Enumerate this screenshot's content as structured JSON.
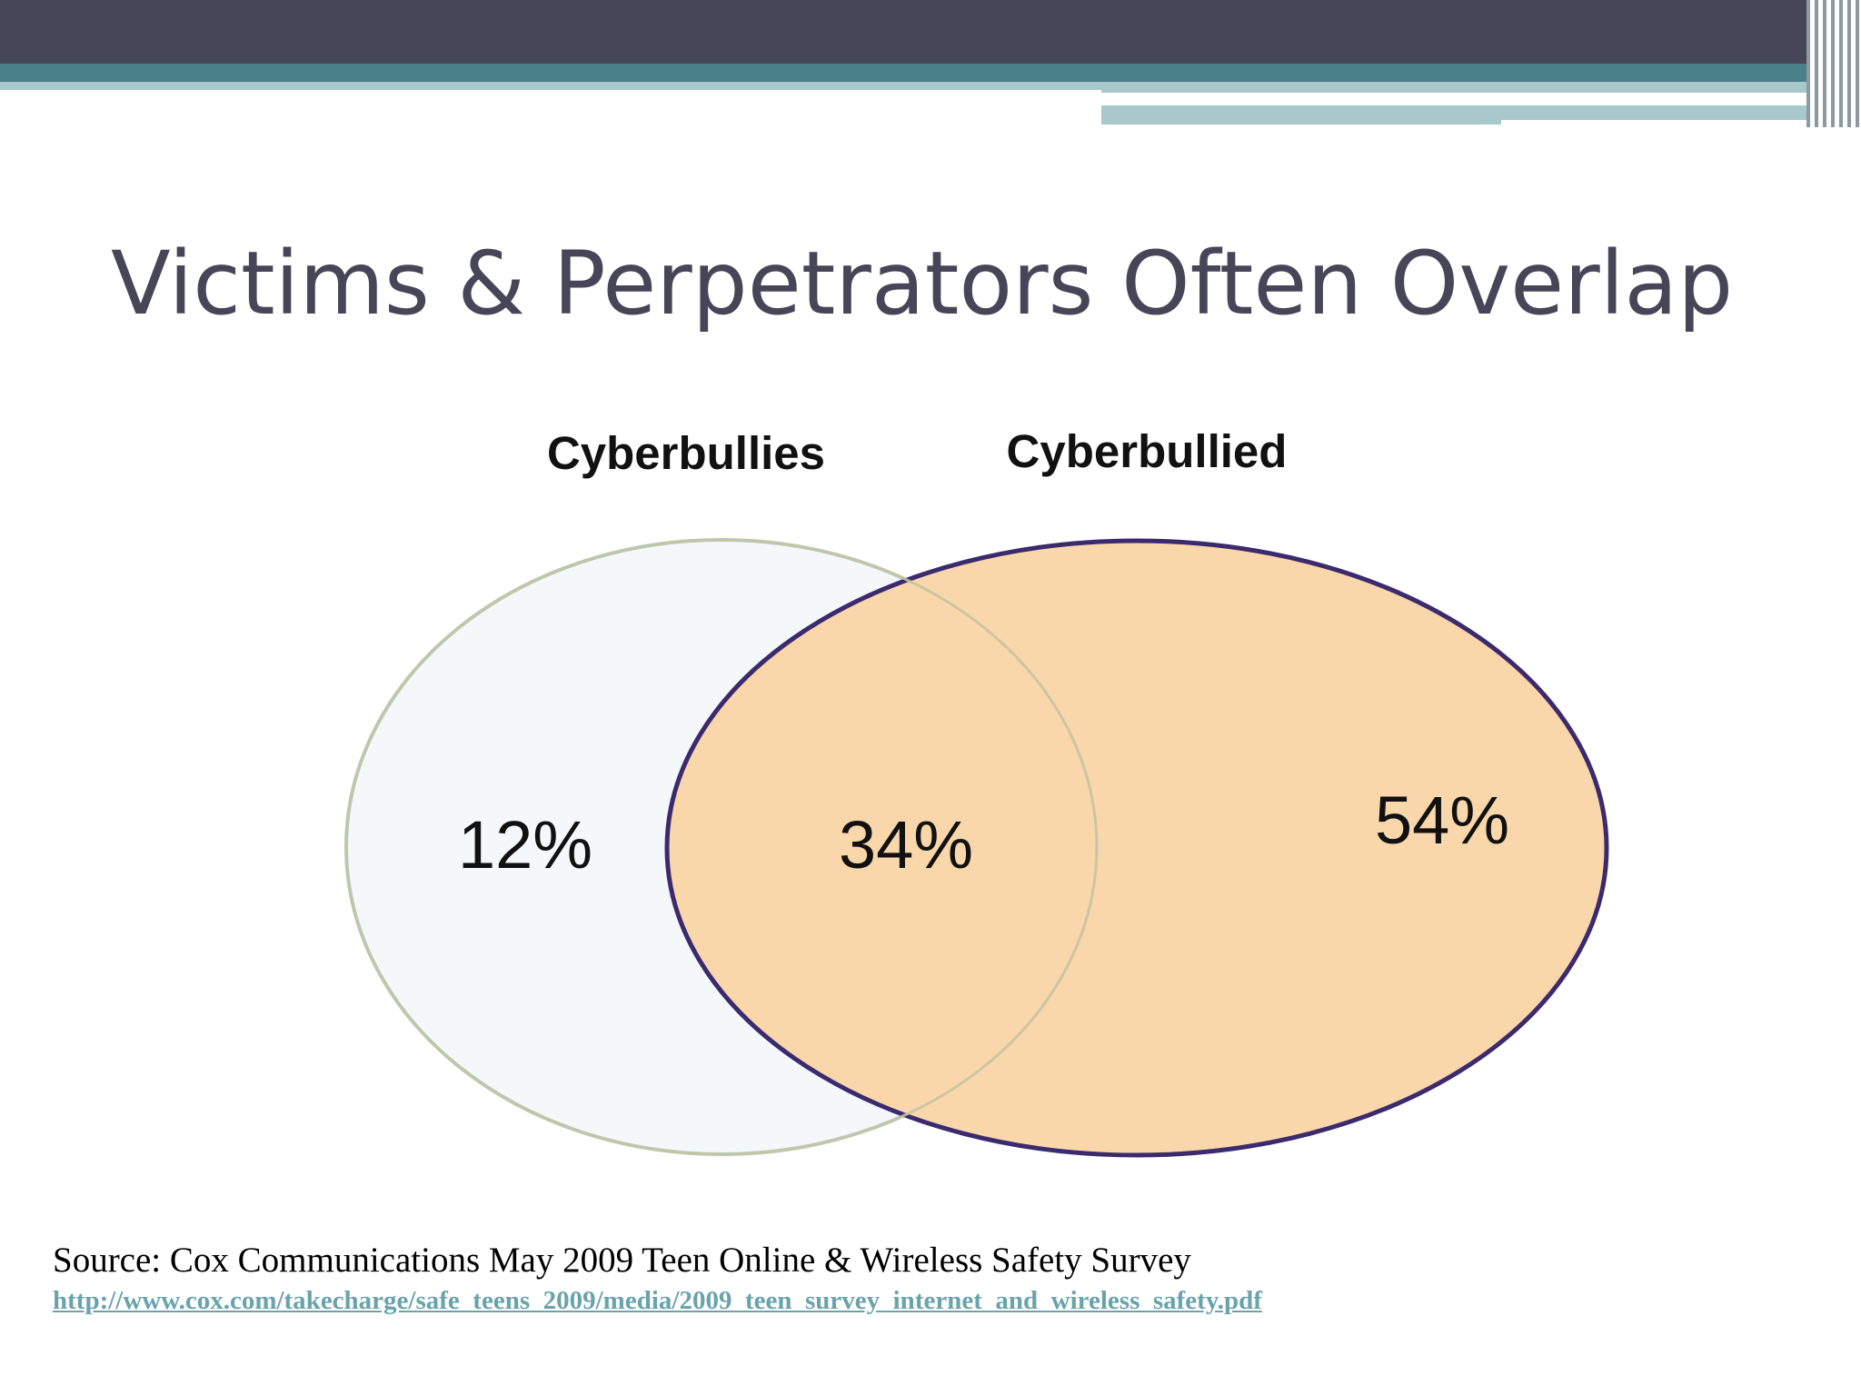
{
  "slide": {
    "title": "Victims & Perpetrators Often Overlap"
  },
  "venn": {
    "sets": [
      {
        "name": "Cyberbullies",
        "only_label": "12%",
        "fill": "#f4f8fa",
        "stroke": "#a9cfcd"
      },
      {
        "name": "Cyberbullied",
        "only_label": "54%",
        "fill": "#f9d7ab",
        "stroke": "#3b2a6e"
      }
    ],
    "overlap_label": "34%"
  },
  "source": {
    "text": "Source: Cox Communications May 2009 Teen Online & Wireless Safety Survey",
    "link": "http://www.cox.com/takecharge/safe_teens_2009/media/2009_teen_survey_internet_and_wireless_safety.pdf"
  },
  "colors": {
    "banner_dark": "#474658",
    "banner_teal": "#4a8088",
    "banner_light": "#a8c8cb",
    "title": "#474658",
    "link": "#6aa3ac"
  }
}
